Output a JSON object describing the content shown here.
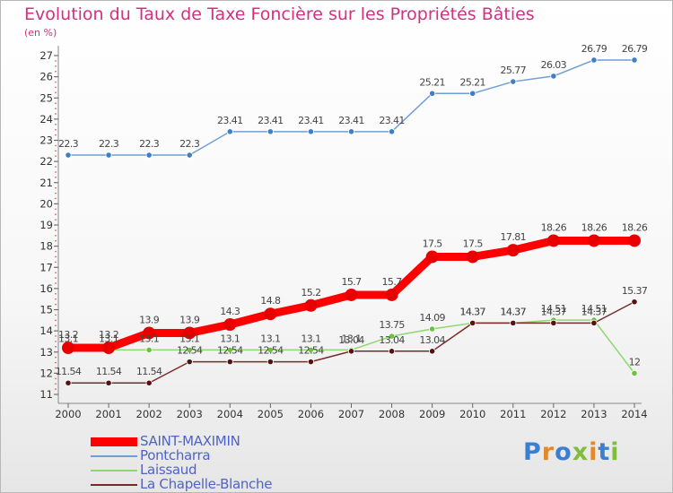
{
  "title": "Evolution du Taux de Taxe Foncière sur les Propriétés Bâties",
  "unit_label": "(en %)",
  "logo": {
    "text": "Proxiti",
    "colors": [
      "#3a7fd0",
      "#e08a2c",
      "#3a7fd0",
      "#7fbe3a",
      "#e08a2c",
      "#3a7fd0",
      "#7fbe3a"
    ]
  },
  "chart_data": {
    "type": "line",
    "title": "Evolution du Taux de Taxe Foncière sur les Propriétés Bâties",
    "ylabel": "(en %)",
    "x": [
      "2000",
      "2001",
      "2002",
      "2003",
      "2004",
      "2005",
      "2006",
      "2007",
      "2008",
      "2009",
      "2010",
      "2011",
      "2012",
      "2013",
      "2014"
    ],
    "ylim": [
      11,
      27
    ],
    "yticks": [
      11,
      12,
      13,
      14,
      15,
      16,
      17,
      18,
      19,
      20,
      21,
      22,
      23,
      24,
      25,
      26,
      27
    ],
    "grid": false,
    "legend_position": "bottom-left",
    "series": [
      {
        "name": "SAINT-MAXIMIN",
        "color": "#ff0000",
        "marker": "#e80000",
        "values": [
          13.2,
          13.2,
          13.9,
          13.9,
          14.3,
          14.8,
          15.2,
          15.7,
          15.7,
          17.5,
          17.5,
          17.81,
          18.26,
          18.26,
          18.26
        ],
        "labels": [
          "13.2",
          "13.2",
          "13.9",
          "13.9",
          "14.3",
          "14.8",
          "15.2",
          "15.7",
          "15.7",
          "17.5",
          "17.5",
          "17.81",
          "18.26",
          "18.26",
          "18.26"
        ]
      },
      {
        "name": "Pontcharra",
        "color": "#6e9ed8",
        "marker": "#3f7fc4",
        "values": [
          22.3,
          22.3,
          22.3,
          22.3,
          23.41,
          23.41,
          23.41,
          23.41,
          23.41,
          25.21,
          25.21,
          25.77,
          26.03,
          26.79,
          26.79
        ],
        "labels": [
          "22.3",
          "22.3",
          "22.3",
          "22.3",
          "23.41",
          "23.41",
          "23.41",
          "23.41",
          "23.41",
          "25.21",
          "25.21",
          "25.77",
          "26.03",
          "26.79",
          "26.79"
        ]
      },
      {
        "name": "Laissaud",
        "color": "#8ed86e",
        "marker": "#6cc043",
        "values": [
          13.1,
          13.1,
          13.1,
          13.1,
          13.1,
          13.1,
          13.1,
          13.1,
          13.75,
          14.09,
          14.37,
          14.37,
          14.51,
          14.51,
          12
        ],
        "labels": [
          "13.1",
          "13.1",
          "13.1",
          "13.1",
          "13.1",
          "13.1",
          "13.1",
          "13.1",
          "13.75",
          "14.09",
          "14.37",
          "14.37",
          "14.51",
          "14.51",
          "12"
        ]
      },
      {
        "name": "La Chapelle-Blanche",
        "color": "#7a2a2a",
        "marker": "#5a0f12",
        "values": [
          11.54,
          11.54,
          11.54,
          12.54,
          12.54,
          12.54,
          12.54,
          13.04,
          13.04,
          13.04,
          14.37,
          14.37,
          14.37,
          14.37,
          15.37
        ],
        "labels": [
          "11.54",
          "11.54",
          "11.54",
          "12.54",
          "12.54",
          "12.54",
          "12.54",
          "13.04",
          "13.04",
          "13.04",
          "14.37",
          "14.37",
          "14.37",
          "14.37",
          "15.37"
        ]
      }
    ]
  }
}
